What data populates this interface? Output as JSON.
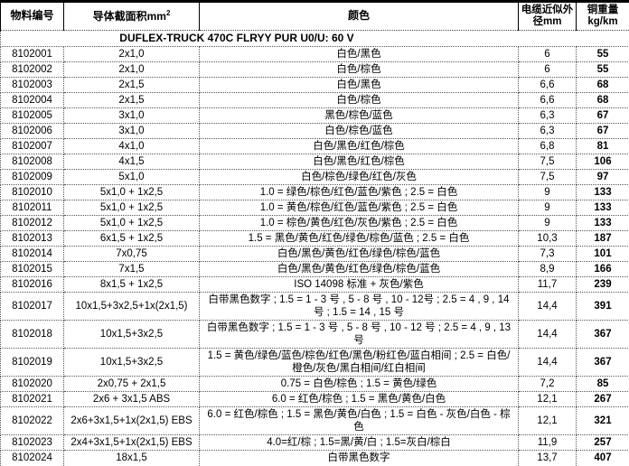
{
  "table": {
    "header": {
      "material_no": "物料编号",
      "cross_section": "导体截面积mm",
      "cross_section_sup": "2",
      "colors": "颜色",
      "outer_diameter": "电缆近似外径mm",
      "copper_weight": "铜重量 kg/km"
    },
    "subtitle": "DUFLEX-TRUCK 470C FLRYY PUR U0/U: 60 V",
    "rows": [
      {
        "id": "8102001",
        "cross_section": "2x1,0",
        "colors": "白色/黑色",
        "diameter": "6",
        "weight": "55"
      },
      {
        "id": "8102002",
        "cross_section": "2x1,0",
        "colors": "白色/棕色",
        "diameter": "6",
        "weight": "55"
      },
      {
        "id": "8102003",
        "cross_section": "2x1,5",
        "colors": "白色/黑色",
        "diameter": "6,6",
        "weight": "68"
      },
      {
        "id": "8102004",
        "cross_section": "2x1,5",
        "colors": "白色/棕色",
        "diameter": "6,6",
        "weight": "68"
      },
      {
        "id": "8102005",
        "cross_section": "3x1,0",
        "colors": "黑色/棕色/蓝色",
        "diameter": "6,3",
        "weight": "67"
      },
      {
        "id": "8102006",
        "cross_section": "3x1,0",
        "colors": "白色/棕色/蓝色",
        "diameter": "6,3",
        "weight": "67"
      },
      {
        "id": "8102007",
        "cross_section": "4x1,0",
        "colors": "白色/黑色/红色/棕色",
        "diameter": "6,8",
        "weight": "81"
      },
      {
        "id": "8102008",
        "cross_section": "4x1,5",
        "colors": "白色/黑色/红色/棕色",
        "diameter": "7,5",
        "weight": "106"
      },
      {
        "id": "8102009",
        "cross_section": "5x1,0",
        "colors": "白色/棕色/绿色/红色/灰色",
        "diameter": "7,5",
        "weight": "97"
      },
      {
        "id": "8102010",
        "cross_section": "5x1,0 + 1x2,5",
        "colors": "1.0 = 绿色/棕色/红色/蓝色/紫色 ; 2.5 = 白色",
        "diameter": "9",
        "weight": "133"
      },
      {
        "id": "8102011",
        "cross_section": "5x1,0 + 1x2,5",
        "colors": "1.0 = 黄色/棕色/红色/蓝色/紫色 ; 2.5 = 白色",
        "diameter": "9",
        "weight": "133"
      },
      {
        "id": "8102012",
        "cross_section": "5x1,0 + 1x2,5",
        "colors": "1.0 = 棕色/黄色/红色/灰色/紫色 ; 2.5 = 白色",
        "diameter": "9",
        "weight": "133"
      },
      {
        "id": "8102013",
        "cross_section": "6x1,5 + 1x2,5",
        "colors": "1.5 = 黑色/黄色/红色/绿色/棕色/蓝色 ; 2.5 = 白色",
        "diameter": "10,3",
        "weight": "187"
      },
      {
        "id": "8102014",
        "cross_section": "7x0,75",
        "colors": "白色/黑色/黄色/红色/绿色/棕色/蓝色",
        "diameter": "7,3",
        "weight": "101"
      },
      {
        "id": "8102015",
        "cross_section": "7x1,5",
        "colors": "白色/黑色/黄色/红色/绿色/棕色/蓝色",
        "diameter": "8,9",
        "weight": "166"
      },
      {
        "id": "8102016",
        "cross_section": "8x1,5 + 1x2,5",
        "colors": "ISO 14098 标准 + 灰色/紫色",
        "diameter": "11,7",
        "weight": "239"
      },
      {
        "id": "8102017",
        "cross_section": "10x1,5+3x2,5+1x(2x1,5)",
        "colors": "白带黑色数字 ; 1.5 = 1 - 3 号 , 5 - 8 号 , 10 - 12号 ; 2.5 = 4 , 9 , 14 号 ; 1.5 = 14 , 15 号",
        "diameter": "14,4",
        "weight": "391"
      },
      {
        "id": "8102018",
        "cross_section": "10x1,5+3x2,5",
        "colors": "白带黑色数字 ; 1.5 = 1 - 3 号 , 5 - 8 号 , 10 - 12 号 ; 2.5 = 4 , 9 , 13 号",
        "diameter": "14,4",
        "weight": "367"
      },
      {
        "id": "8102019",
        "cross_section": "10x1,5+3x2,5",
        "colors": "1.5 = 黄色/绿色/蓝色/棕色/红色/黑色/粉红色/蓝白相间 ; 2.5 = 白色/橙色/灰色/黑白相间/红白相间",
        "diameter": "14,4",
        "weight": "367"
      },
      {
        "id": "8102020",
        "cross_section": "2x0,75 + 2x1,5",
        "colors": "0.75 = 白色/棕色 ; 1.5 = 黄色/绿色",
        "diameter": "7,2",
        "weight": "85"
      },
      {
        "id": "8102021",
        "cross_section": "2x6 + 3x1,5 ABS",
        "colors": "6.0 = 红色/棕色 ; 1.5 = 黑色/黄色/白色",
        "diameter": "12,1",
        "weight": "267"
      },
      {
        "id": "8102022",
        "cross_section": "2x6+3x1,5+1x(2x1,5) EBS",
        "colors": "6.0 = 红色/棕色 ; 1.5 = 黑色/黄色/白色 ; 1.5 = 白色 - 灰色/白色 - 棕色",
        "diameter": "12,1",
        "weight": "321"
      },
      {
        "id": "8102023",
        "cross_section": "2x4+3x1,5+1x(2x1,5) EBS",
        "colors": "4.0=红/棕 ; 1.5=黑/黄/白 ; 1.5=灰白/棕白",
        "diameter": "11,9",
        "weight": "257"
      },
      {
        "id": "8102024",
        "cross_section": "18x1,5",
        "colors": "白带黑色数字",
        "diameter": "13,7",
        "weight": "407"
      }
    ]
  }
}
